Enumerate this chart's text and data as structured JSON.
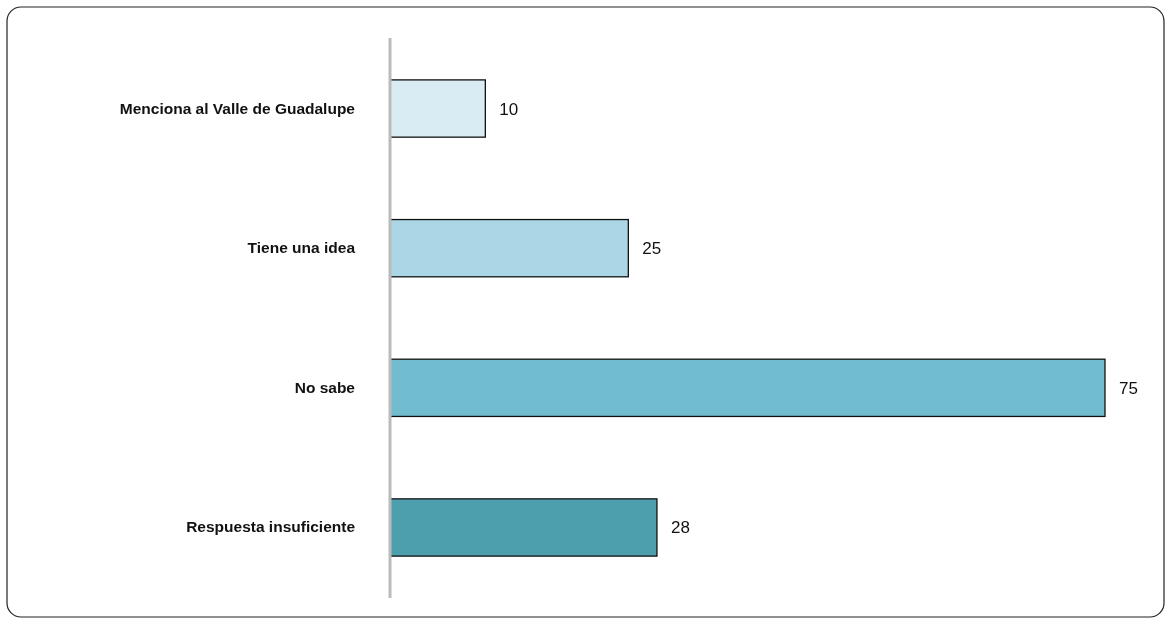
{
  "chart_data": {
    "type": "bar",
    "orientation": "horizontal",
    "categories": [
      "Menciona al Valle de Guadalupe",
      "Tiene una idea",
      "No sabe ",
      "Respuesta insuficiente"
    ],
    "values": [
      10,
      25,
      75,
      28
    ],
    "colors": [
      "#d9ecf4",
      "#aad6e6",
      "#72bccf",
      "#4e9fae"
    ],
    "data_labels": true
  }
}
